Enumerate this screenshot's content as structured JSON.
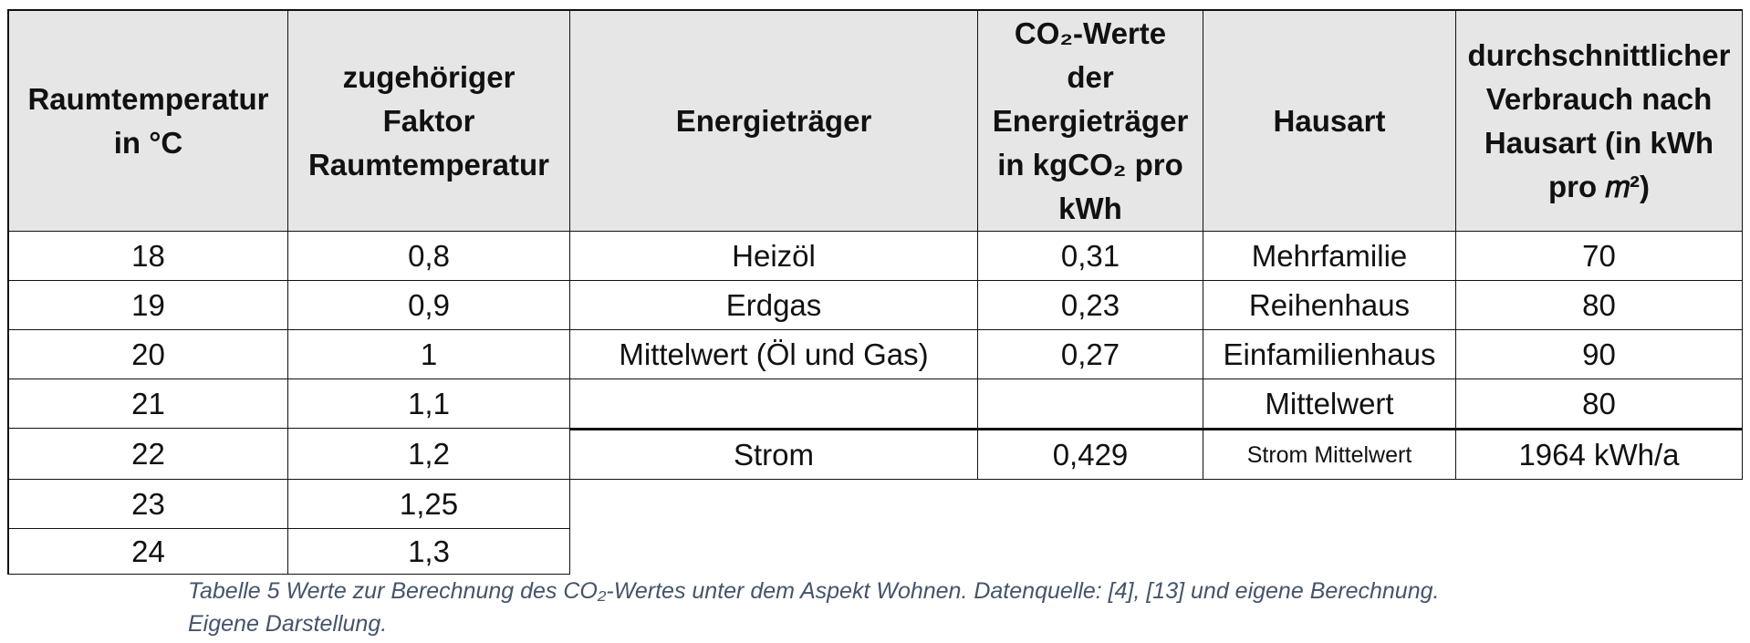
{
  "headers": {
    "raumtemp": [
      "Raumtemperatur",
      "in °C"
    ],
    "faktor": [
      "zugehöriger",
      "Faktor",
      "Raumtemperatur"
    ],
    "energietraeger": [
      "Energieträger"
    ],
    "co2": [
      "CO₂-Werte",
      "der",
      "Energieträger",
      "in kgCO₂ pro",
      "kWh"
    ],
    "hausart": [
      "Hausart"
    ],
    "verbrauch": [
      "durchschnittlicher",
      "Verbrauch nach",
      "Hausart (in kWh",
      "pro 𝑚²)"
    ]
  },
  "temperature_rows": [
    {
      "temp": "18",
      "factor": "0,8"
    },
    {
      "temp": "19",
      "factor": "0,9"
    },
    {
      "temp": "20",
      "factor": "1"
    },
    {
      "temp": "21",
      "factor": "1,1"
    },
    {
      "temp": "22",
      "factor": "1,2"
    },
    {
      "temp": "23",
      "factor": "1,25"
    },
    {
      "temp": "24",
      "factor": "1,3"
    }
  ],
  "energy_rows": [
    {
      "traeger": "Heizöl",
      "co2": "0,31",
      "hausart": "Mehrfamilie",
      "verbrauch": "70"
    },
    {
      "traeger": "Erdgas",
      "co2": "0,23",
      "hausart": "Reihenhaus",
      "verbrauch": "80"
    },
    {
      "traeger": "Mittelwert (Öl und Gas)",
      "co2": "0,27",
      "hausart": "Einfamilienhaus",
      "verbrauch": "90"
    },
    {
      "traeger": "",
      "co2": "",
      "hausart": "Mittelwert",
      "verbrauch": "80"
    },
    {
      "traeger": "Strom",
      "co2": "0,429",
      "hausart": "Strom Mittelwert",
      "verbrauch": "1964 kWh/a"
    }
  ],
  "caption": {
    "line1": "Tabelle 5 Werte zur Berechnung des CO₂-Wertes unter dem Aspekt Wohnen. Datenquelle: [4], [13] und eigene Berechnung.",
    "line2": "Eigene Darstellung."
  }
}
